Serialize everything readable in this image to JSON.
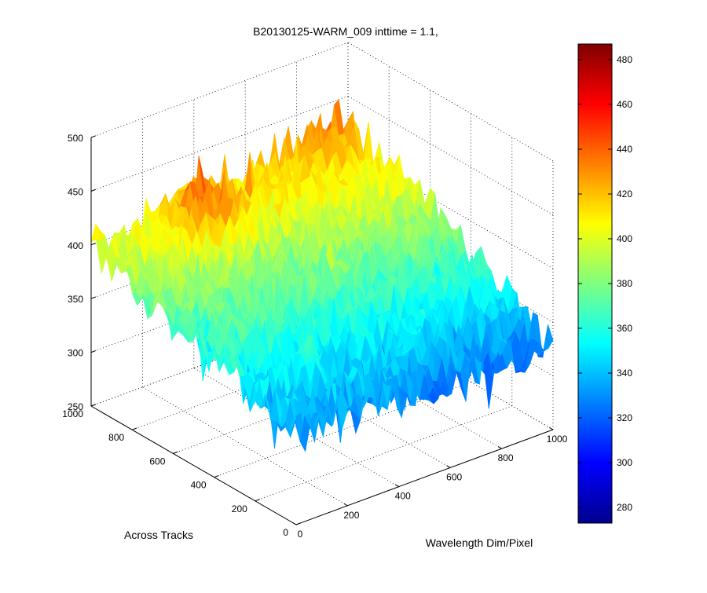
{
  "chart_data": {
    "type": "surface",
    "title": "B20130125-WARM_009 inttime = 1.1,",
    "xlabel": "Wavelength Dim/Pixel",
    "ylabel": "Across Tracks",
    "zlabel": "",
    "xlim": [
      0,
      1000
    ],
    "ylim": [
      0,
      1000
    ],
    "zlim": [
      250,
      500
    ],
    "x_ticks": [
      "0",
      "200",
      "400",
      "600",
      "800",
      "1000"
    ],
    "y_ticks": [
      "0",
      "200",
      "400",
      "600",
      "800",
      "1000"
    ],
    "z_ticks": [
      "250",
      "300",
      "350",
      "400",
      "450",
      "500"
    ],
    "grid": true,
    "colormap": "jet",
    "colorbar": {
      "range": [
        273,
        487
      ],
      "ticks": [
        "280",
        "300",
        "320",
        "340",
        "360",
        "380",
        "400",
        "420",
        "440",
        "460",
        "480"
      ]
    },
    "surface_corners": [
      {
        "x": 0,
        "y": 0,
        "z": 333
      },
      {
        "x": 1000,
        "y": 0,
        "z": 325
      },
      {
        "x": 0,
        "y": 1000,
        "z": 400
      },
      {
        "x": 1000,
        "y": 1000,
        "z": 432
      }
    ],
    "hotspot": {
      "x": 320,
      "y": 830,
      "z": 445
    },
    "noise_amplitude": 20
  }
}
